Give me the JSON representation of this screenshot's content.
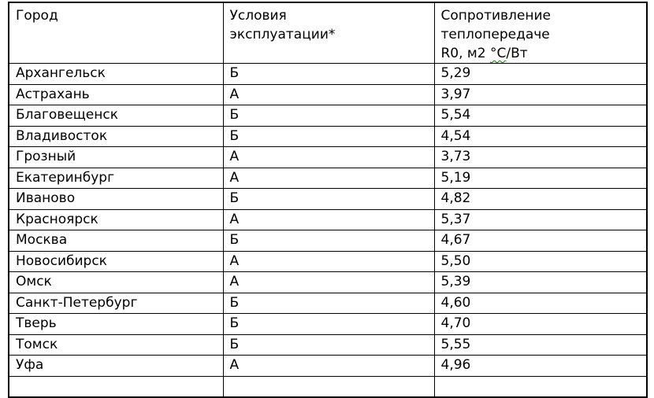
{
  "table": {
    "header": {
      "city": "Город",
      "conditions_line1": "Условия",
      "conditions_line2": "эксплуатации*",
      "resistance_line1": "Сопротивление",
      "resistance_line2": "теплопередаче",
      "resistance_line3_prefix": "R0, м2 ",
      "resistance_line3_flagged": "°С",
      "resistance_line3_suffix": "/Вт"
    },
    "rows": [
      {
        "city": "Архангельск",
        "conditions": "Б",
        "resistance": "5,29"
      },
      {
        "city": "Астрахань",
        "conditions": "А",
        "resistance": "3,97"
      },
      {
        "city": "Благовещенск",
        "conditions": "Б",
        "resistance": "5,54"
      },
      {
        "city": "Владивосток",
        "conditions": "Б",
        "resistance": "4,54"
      },
      {
        "city": "Грозный",
        "conditions": "А",
        "resistance": "3,73"
      },
      {
        "city": "Екатеринбург",
        "conditions": "А",
        "resistance": "5,19"
      },
      {
        "city": "Иваново",
        "conditions": "Б",
        "resistance": "4,82"
      },
      {
        "city": "Красноярск",
        "conditions": "А",
        "resistance": "5,37"
      },
      {
        "city": "Москва",
        "conditions": "Б",
        "resistance": "4,67"
      },
      {
        "city": "Новосибирск",
        "conditions": "А",
        "resistance": "5,50"
      },
      {
        "city": "Омск",
        "conditions": "А",
        "resistance": "5,39"
      },
      {
        "city": "Санкт-Петербург",
        "conditions": "Б",
        "resistance": "4,60"
      },
      {
        "city": "Тверь",
        "conditions": "Б",
        "resistance": "4,70"
      },
      {
        "city": "Томск",
        "conditions": "Б",
        "resistance": "5,55"
      },
      {
        "city": "Уфа",
        "conditions": "А",
        "resistance": "4,96"
      }
    ]
  },
  "colors": {
    "text": "#000000",
    "border": "#000000",
    "background": "#ffffff",
    "spellcheck_underline": "#008000"
  }
}
